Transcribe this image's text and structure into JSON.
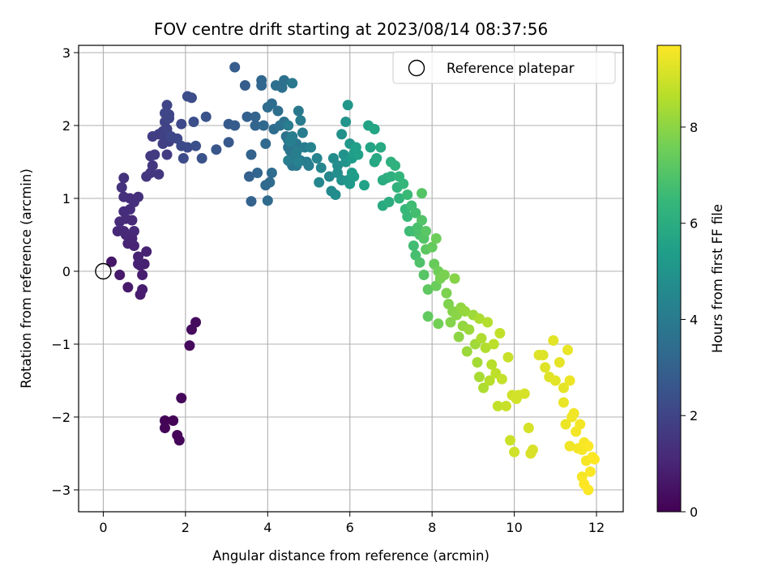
{
  "chart_data": {
    "type": "scatter",
    "title": "FOV centre drift starting at 2023/08/14 08:37:56",
    "xlabel": "Angular distance from reference (arcmin)",
    "ylabel": "Rotation from reference (arcmin)",
    "xlim": [
      -0.6,
      12.65
    ],
    "ylim": [
      -3.3,
      3.1
    ],
    "xticks": [
      0,
      2,
      4,
      6,
      8,
      10,
      12
    ],
    "yticks": [
      -3,
      -2,
      -1,
      0,
      1,
      2,
      3
    ],
    "grid": true,
    "legend_position": "top-right",
    "legend": [
      "Reference platepar"
    ],
    "reference_point": {
      "x": 0,
      "y": 0
    },
    "colorbar": {
      "label": "Hours from first FF file",
      "colormap": "viridis",
      "range": [
        0,
        9.7
      ],
      "ticks": [
        0,
        2,
        4,
        6,
        8
      ]
    },
    "points": [
      [
        1.5,
        -2.05,
        0.1
      ],
      [
        1.7,
        -2.05,
        0.1
      ],
      [
        1.5,
        -2.15,
        0.1
      ],
      [
        1.8,
        -2.25,
        0.15
      ],
      [
        1.85,
        -2.32,
        0.15
      ],
      [
        1.9,
        -1.74,
        0.2
      ],
      [
        2.1,
        -1.02,
        0.25
      ],
      [
        2.15,
        -0.8,
        0.3
      ],
      [
        2.25,
        -0.7,
        0.3
      ],
      [
        0.2,
        0.13,
        0.6
      ],
      [
        0.4,
        -0.05,
        0.65
      ],
      [
        0.6,
        -0.22,
        0.7
      ],
      [
        0.9,
        -0.32,
        0.75
      ],
      [
        0.95,
        -0.25,
        0.8
      ],
      [
        0.95,
        -0.05,
        0.8
      ],
      [
        0.9,
        0.08,
        0.85
      ],
      [
        1.0,
        0.1,
        0.85
      ],
      [
        1.05,
        0.27,
        0.9
      ],
      [
        0.85,
        0.1,
        0.9
      ],
      [
        0.85,
        0.2,
        0.95
      ],
      [
        0.75,
        0.35,
        1.0
      ],
      [
        0.6,
        0.38,
        1.0
      ],
      [
        0.7,
        0.45,
        1.05
      ],
      [
        0.55,
        0.5,
        1.05
      ],
      [
        0.35,
        0.55,
        1.1
      ],
      [
        0.5,
        0.55,
        1.1
      ],
      [
        0.75,
        0.55,
        1.15
      ],
      [
        0.7,
        0.7,
        1.15
      ],
      [
        0.4,
        0.68,
        1.2
      ],
      [
        0.55,
        0.72,
        1.2
      ],
      [
        0.5,
        0.82,
        1.25
      ],
      [
        0.65,
        0.85,
        1.25
      ],
      [
        0.75,
        0.95,
        1.3
      ],
      [
        0.65,
        1.0,
        1.3
      ],
      [
        0.85,
        1.02,
        1.35
      ],
      [
        0.5,
        1.02,
        1.35
      ],
      [
        0.45,
        1.15,
        1.4
      ],
      [
        0.5,
        1.28,
        1.4
      ],
      [
        1.05,
        1.3,
        1.5
      ],
      [
        1.15,
        1.35,
        1.55
      ],
      [
        1.2,
        1.45,
        1.6
      ],
      [
        1.35,
        1.33,
        1.6
      ],
      [
        1.15,
        1.58,
        1.65
      ],
      [
        1.25,
        1.6,
        1.7
      ],
      [
        1.55,
        1.6,
        1.75
      ],
      [
        1.2,
        1.85,
        1.8
      ],
      [
        1.35,
        1.88,
        1.8
      ],
      [
        1.45,
        1.75,
        1.85
      ],
      [
        1.5,
        1.85,
        1.85
      ],
      [
        1.6,
        1.78,
        1.9
      ],
      [
        1.45,
        1.92,
        1.9
      ],
      [
        1.55,
        1.95,
        1.95
      ],
      [
        1.5,
        2.05,
        1.95
      ],
      [
        1.6,
        2.15,
        2.0
      ],
      [
        1.55,
        2.28,
        2.0
      ],
      [
        1.5,
        2.17,
        2.05
      ],
      [
        1.6,
        2.1,
        2.05
      ],
      [
        1.65,
        1.85,
        2.1
      ],
      [
        1.8,
        1.82,
        2.1
      ],
      [
        1.9,
        2.02,
        2.15
      ],
      [
        1.9,
        1.72,
        2.2
      ],
      [
        2.05,
        1.7,
        2.2
      ],
      [
        1.95,
        1.55,
        2.25
      ],
      [
        2.05,
        2.4,
        2.3
      ],
      [
        2.15,
        2.38,
        2.3
      ],
      [
        2.2,
        2.05,
        2.35
      ],
      [
        2.25,
        1.72,
        2.4
      ],
      [
        2.4,
        1.55,
        2.45
      ],
      [
        2.5,
        2.12,
        2.5
      ],
      [
        2.75,
        1.67,
        2.6
      ],
      [
        3.05,
        1.77,
        2.7
      ],
      [
        3.05,
        2.02,
        2.75
      ],
      [
        3.2,
        2.0,
        2.8
      ],
      [
        3.2,
        2.8,
        2.85
      ],
      [
        3.45,
        2.55,
        2.9
      ],
      [
        3.5,
        2.12,
        2.95
      ],
      [
        3.55,
        1.3,
        3.0
      ],
      [
        3.6,
        1.6,
        3.05
      ],
      [
        3.6,
        0.96,
        3.05
      ],
      [
        3.7,
        2.0,
        3.1
      ],
      [
        3.7,
        2.12,
        3.1
      ],
      [
        3.75,
        1.35,
        3.15
      ],
      [
        3.85,
        2.55,
        3.2
      ],
      [
        3.85,
        2.62,
        3.2
      ],
      [
        3.9,
        2.0,
        3.25
      ],
      [
        3.95,
        1.75,
        3.3
      ],
      [
        3.95,
        1.18,
        3.3
      ],
      [
        4.0,
        0.97,
        3.35
      ],
      [
        4.05,
        1.22,
        3.35
      ],
      [
        4.1,
        1.35,
        3.4
      ],
      [
        4.0,
        2.25,
        3.4
      ],
      [
        4.1,
        2.3,
        3.45
      ],
      [
        4.15,
        1.95,
        3.45
      ],
      [
        4.25,
        2.2,
        3.5
      ],
      [
        4.2,
        2.55,
        3.55
      ],
      [
        4.35,
        2.52,
        3.55
      ],
      [
        4.4,
        2.62,
        3.6
      ],
      [
        4.3,
        2.0,
        3.6
      ],
      [
        4.4,
        2.05,
        3.65
      ],
      [
        4.45,
        1.85,
        3.65
      ],
      [
        4.5,
        1.8,
        3.7
      ],
      [
        4.5,
        1.7,
        3.7
      ],
      [
        4.55,
        1.65,
        3.75
      ],
      [
        4.6,
        1.55,
        3.75
      ],
      [
        4.6,
        1.45,
        3.8
      ],
      [
        4.55,
        1.5,
        3.8
      ],
      [
        4.65,
        1.6,
        3.85
      ],
      [
        4.7,
        1.45,
        3.85
      ],
      [
        4.7,
        1.75,
        3.9
      ],
      [
        4.75,
        2.2,
        3.9
      ],
      [
        4.6,
        2.58,
        3.95
      ],
      [
        4.8,
        1.52,
        3.95
      ],
      [
        4.8,
        2.07,
        4.0
      ],
      [
        4.85,
        1.9,
        4.0
      ],
      [
        4.9,
        1.7,
        4.05
      ],
      [
        4.95,
        1.5,
        4.05
      ],
      [
        5.0,
        1.45,
        4.1
      ],
      [
        4.5,
        2.0,
        4.1
      ],
      [
        4.5,
        1.52,
        4.15
      ],
      [
        4.6,
        1.85,
        4.15
      ],
      [
        4.55,
        1.78,
        4.2
      ],
      [
        4.7,
        1.63,
        4.2
      ],
      [
        4.75,
        1.5,
        4.25
      ],
      [
        5.05,
        1.7,
        4.35
      ],
      [
        5.2,
        1.55,
        4.4
      ],
      [
        5.25,
        1.22,
        4.45
      ],
      [
        5.3,
        1.42,
        4.5
      ],
      [
        5.5,
        1.3,
        4.55
      ],
      [
        5.55,
        1.1,
        4.6
      ],
      [
        5.6,
        1.55,
        4.65
      ],
      [
        5.65,
        1.05,
        4.7
      ],
      [
        5.7,
        1.45,
        4.75
      ],
      [
        5.7,
        1.35,
        4.8
      ],
      [
        5.8,
        1.25,
        4.85
      ],
      [
        5.8,
        1.88,
        4.9
      ],
      [
        5.85,
        1.6,
        4.95
      ],
      [
        5.9,
        2.05,
        5.0
      ],
      [
        5.9,
        1.5,
        5.05
      ],
      [
        5.95,
        1.25,
        5.05
      ],
      [
        5.95,
        2.28,
        5.1
      ],
      [
        6.0,
        1.75,
        5.15
      ],
      [
        6.0,
        1.2,
        5.2
      ],
      [
        6.05,
        1.55,
        5.25
      ],
      [
        6.05,
        1.35,
        5.3
      ],
      [
        6.1,
        1.3,
        5.35
      ],
      [
        6.1,
        1.62,
        5.4
      ],
      [
        6.15,
        1.7,
        5.45
      ],
      [
        6.2,
        1.6,
        5.5
      ],
      [
        6.35,
        1.18,
        5.55
      ],
      [
        6.45,
        2.0,
        5.6
      ],
      [
        6.5,
        1.7,
        5.65
      ],
      [
        6.6,
        1.95,
        5.7
      ],
      [
        6.6,
        1.5,
        5.75
      ],
      [
        6.65,
        1.55,
        5.8
      ],
      [
        6.75,
        1.7,
        5.85
      ],
      [
        6.8,
        0.9,
        5.9
      ],
      [
        6.8,
        1.25,
        5.95
      ],
      [
        6.9,
        1.28,
        6.0
      ],
      [
        6.95,
        0.95,
        6.05
      ],
      [
        7.0,
        1.3,
        6.1
      ],
      [
        7.0,
        1.5,
        6.15
      ],
      [
        7.1,
        1.45,
        6.2
      ],
      [
        7.15,
        1.15,
        6.25
      ],
      [
        7.2,
        1.0,
        6.3
      ],
      [
        7.2,
        1.3,
        6.35
      ],
      [
        7.3,
        1.2,
        6.4
      ],
      [
        7.35,
        0.85,
        6.45
      ],
      [
        7.4,
        0.75,
        6.5
      ],
      [
        7.4,
        1.05,
        6.55
      ],
      [
        7.45,
        0.55,
        6.6
      ],
      [
        7.5,
        0.9,
        6.65
      ],
      [
        7.55,
        0.55,
        6.7
      ],
      [
        7.55,
        0.35,
        6.7
      ],
      [
        7.6,
        0.8,
        6.75
      ],
      [
        7.6,
        0.22,
        6.8
      ],
      [
        7.65,
        0.6,
        6.85
      ],
      [
        7.7,
        0.5,
        6.9
      ],
      [
        7.7,
        0.12,
        6.95
      ],
      [
        7.75,
        0.7,
        7.0
      ],
      [
        7.75,
        1.07,
        7.05
      ],
      [
        7.8,
        0.45,
        7.05
      ],
      [
        7.8,
        -0.05,
        7.1
      ],
      [
        7.85,
        0.55,
        7.15
      ],
      [
        7.85,
        0.3,
        7.2
      ],
      [
        7.9,
        -0.25,
        7.25
      ],
      [
        7.9,
        -0.62,
        7.3
      ],
      [
        8.0,
        0.33,
        7.35
      ],
      [
        8.05,
        0.1,
        7.4
      ],
      [
        8.1,
        -0.2,
        7.45
      ],
      [
        8.1,
        0.45,
        7.5
      ],
      [
        8.15,
        0.0,
        7.55
      ],
      [
        8.15,
        -0.72,
        7.6
      ],
      [
        8.2,
        -0.1,
        7.65
      ],
      [
        8.3,
        -0.05,
        7.7
      ],
      [
        8.35,
        -0.3,
        7.75
      ],
      [
        8.4,
        -0.45,
        7.8
      ],
      [
        8.45,
        -0.7,
        7.85
      ],
      [
        8.5,
        -0.55,
        7.9
      ],
      [
        8.55,
        -0.1,
        7.9
      ],
      [
        8.6,
        -0.6,
        7.95
      ],
      [
        8.65,
        -0.9,
        8.0
      ],
      [
        8.7,
        -0.5,
        8.05
      ],
      [
        8.75,
        -0.75,
        8.1
      ],
      [
        8.8,
        -0.55,
        8.15
      ],
      [
        8.85,
        -1.1,
        8.2
      ],
      [
        8.9,
        -0.8,
        8.2
      ],
      [
        9.0,
        -0.6,
        8.25
      ],
      [
        9.05,
        -1.0,
        8.3
      ],
      [
        9.1,
        -1.25,
        8.35
      ],
      [
        9.15,
        -1.45,
        8.4
      ],
      [
        9.15,
        -0.65,
        8.45
      ],
      [
        9.2,
        -0.92,
        8.5
      ],
      [
        9.25,
        -1.6,
        8.5
      ],
      [
        9.3,
        -1.05,
        8.55
      ],
      [
        9.35,
        -0.7,
        8.6
      ],
      [
        9.4,
        -1.5,
        8.65
      ],
      [
        9.45,
        -1.28,
        8.65
      ],
      [
        9.5,
        -1.0,
        8.7
      ],
      [
        9.55,
        -1.4,
        8.75
      ],
      [
        9.6,
        -1.85,
        8.8
      ],
      [
        9.65,
        -0.85,
        8.8
      ],
      [
        9.7,
        -1.48,
        8.85
      ],
      [
        9.8,
        -1.85,
        8.9
      ],
      [
        9.85,
        -1.18,
        8.9
      ],
      [
        9.9,
        -2.32,
        8.95
      ],
      [
        9.95,
        -1.7,
        9.0
      ],
      [
        10.0,
        -2.48,
        9.0
      ],
      [
        10.05,
        -1.75,
        9.05
      ],
      [
        10.1,
        -1.7,
        9.05
      ],
      [
        10.25,
        -1.68,
        9.1
      ],
      [
        10.35,
        -2.15,
        9.1
      ],
      [
        10.4,
        -2.5,
        9.15
      ],
      [
        10.45,
        -2.45,
        9.15
      ],
      [
        10.6,
        -1.15,
        9.2
      ],
      [
        10.7,
        -1.15,
        9.2
      ],
      [
        10.75,
        -1.32,
        9.25
      ],
      [
        10.85,
        -1.45,
        9.25
      ],
      [
        10.95,
        -0.95,
        9.3
      ],
      [
        11.0,
        -1.5,
        9.3
      ],
      [
        11.1,
        -1.25,
        9.35
      ],
      [
        11.2,
        -1.6,
        9.35
      ],
      [
        11.2,
        -1.8,
        9.4
      ],
      [
        11.3,
        -1.08,
        9.4
      ],
      [
        11.35,
        -1.5,
        9.45
      ],
      [
        11.25,
        -2.1,
        9.45
      ],
      [
        11.35,
        -2.4,
        9.5
      ],
      [
        11.4,
        -2.0,
        9.5
      ],
      [
        11.45,
        -1.95,
        9.5
      ],
      [
        11.5,
        -2.2,
        9.55
      ],
      [
        11.55,
        -2.43,
        9.55
      ],
      [
        11.6,
        -2.1,
        9.55
      ],
      [
        11.65,
        -2.45,
        9.6
      ],
      [
        11.7,
        -2.35,
        9.6
      ],
      [
        11.75,
        -2.6,
        9.6
      ],
      [
        11.65,
        -2.82,
        9.6
      ],
      [
        11.8,
        -2.4,
        9.65
      ],
      [
        11.8,
        -3.0,
        9.65
      ],
      [
        11.85,
        -2.75,
        9.65
      ],
      [
        11.9,
        -2.55,
        9.65
      ],
      [
        11.95,
        -2.58,
        9.7
      ],
      [
        11.7,
        -2.92,
        9.7
      ]
    ]
  }
}
